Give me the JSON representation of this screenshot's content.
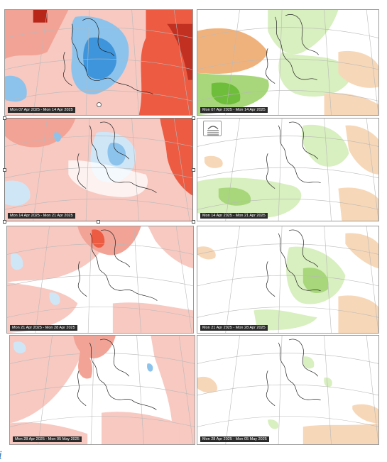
{
  "panels": [
    {
      "id": "t1",
      "label": "Mon 07 Apr 2025 - Mon 14 Apr 2025",
      "kind": "temperature",
      "scheme": "warm-cold"
    },
    {
      "id": "p1",
      "label": "Mon 07 Apr 2025 - Mon 14 Apr 2025",
      "kind": "precipitation",
      "scheme": "dry-wet"
    },
    {
      "id": "t2",
      "label": "Mon 14 Apr 2025 - Mon 21 Apr 2025",
      "kind": "temperature",
      "scheme": "warm-cold",
      "selected": true
    },
    {
      "id": "p2",
      "label": "Mon 14 Apr 2025 - Mon 21 Apr 2025",
      "kind": "precipitation",
      "scheme": "dry-wet"
    },
    {
      "id": "t3",
      "label": "Mon 21 Apr 2025 - Mon 28 Apr 2025",
      "kind": "temperature",
      "scheme": "warm-cold"
    },
    {
      "id": "p3",
      "label": "Mon 21 Apr 2025 - Mon 28 Apr 2025",
      "kind": "precipitation",
      "scheme": "dry-wet"
    },
    {
      "id": "t4",
      "label": "Mon 28 Apr 2025 - Mon 05 May 2025",
      "kind": "temperature",
      "scheme": "warm-cold"
    },
    {
      "id": "p4",
      "label": "Mon 28 Apr 2025 - Mon 05 May 2025",
      "kind": "precipitation",
      "scheme": "dry-wet"
    }
  ],
  "colors": {
    "warm_light": "#f7c9c1",
    "warm_mid": "#f2a396",
    "warm_strong": "#ec5b42",
    "warm_deep": "#b8261a",
    "cold_light": "#cfe6f7",
    "cold_mid": "#8cc3ec",
    "cold_strong": "#3e95dc",
    "wet_light": "#d8efbf",
    "wet_mid": "#a7d77a",
    "wet_strong": "#6ebd3b",
    "dry_light": "#f6d7b8",
    "dry_mid": "#f0b27c",
    "coast": "#222222",
    "grid": "#b9b9b9"
  },
  "icons": {
    "layout_options": "layout-options-icon",
    "rotate_handle": "rotate-handle-icon",
    "corner_mark": "italic-i-mark"
  },
  "corner_mark_text": "i"
}
